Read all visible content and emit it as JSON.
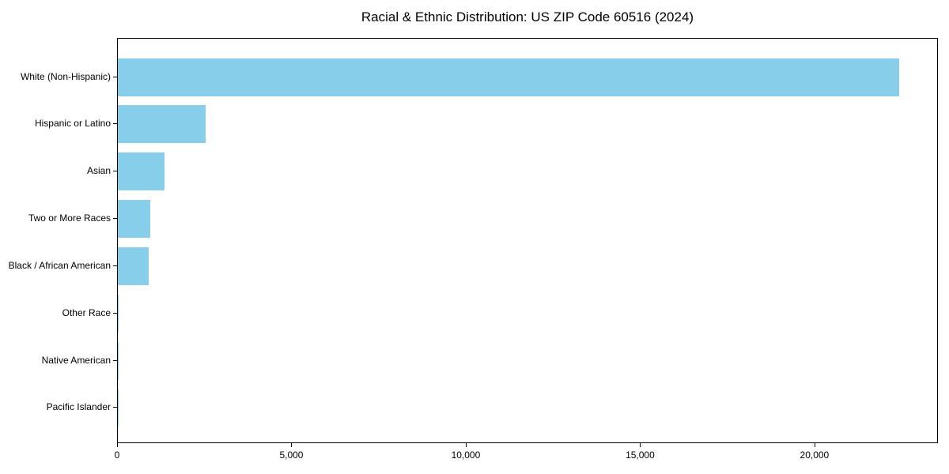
{
  "figure": {
    "title": "Racial & Ethnic Distribution: US ZIP Code 60516 (2024)",
    "background_color": "#FFFFFF",
    "axis_color": "#000000",
    "text_color": "#000000"
  },
  "chart_data": {
    "type": "bar",
    "orientation": "horizontal",
    "title": "Racial & Ethnic Distribution: US ZIP Code 60516 (2024)",
    "categories": [
      "White (Non-Hispanic)",
      "Hispanic or Latino",
      "Asian",
      "Two or More Races",
      "Black / African American",
      "Other Race",
      "Native American",
      "Pacific Islander"
    ],
    "values": [
      22400,
      2520,
      1340,
      940,
      890,
      25,
      10,
      5
    ],
    "bar_color": "#87CEEB",
    "xlabel": "",
    "ylabel": "",
    "xlim": [
      0,
      23540
    ],
    "x_ticks": [
      0,
      5000,
      10000,
      15000,
      20000
    ],
    "x_tick_labels": [
      "0",
      "5,000",
      "10,000",
      "15,000",
      "20,000"
    ],
    "grid": false,
    "legend": null,
    "sort_order": "descending, largest bar at top"
  }
}
